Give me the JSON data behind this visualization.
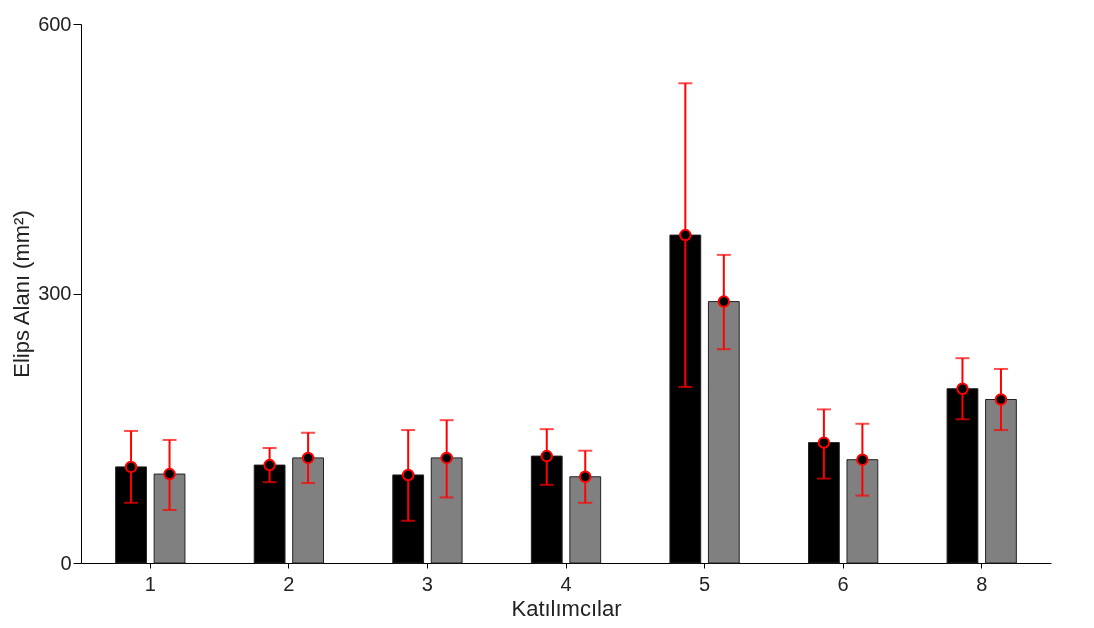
{
  "chart_data": {
    "type": "bar",
    "xlabel": "Katılımcılar",
    "ylabel": "Elips Alanı (mm²)",
    "categories": [
      "1",
      "2",
      "3",
      "4",
      "5",
      "6",
      "8"
    ],
    "series": [
      {
        "color": "#000000",
        "values": [
          107,
          109,
          98,
          119,
          365,
          134,
          194
        ],
        "errors": [
          [
            67,
            147
          ],
          [
            90,
            128
          ],
          [
            47,
            148
          ],
          [
            87,
            149
          ],
          [
            196,
            534
          ],
          [
            94,
            171
          ],
          [
            160,
            228
          ]
        ]
      },
      {
        "color": "#808080",
        "values": [
          99,
          117,
          117,
          96,
          291,
          115,
          182
        ],
        "errors": [
          [
            59,
            137
          ],
          [
            89,
            145
          ],
          [
            73,
            159
          ],
          [
            67,
            125
          ],
          [
            238,
            343
          ],
          [
            75,
            155
          ],
          [
            148,
            216
          ]
        ]
      },
      {
        "type": "scatter",
        "color": "#000000",
        "x": [
          "1",
          "2",
          "3",
          "4",
          "5",
          "6",
          "8"
        ],
        "values": [
          107,
          109,
          98,
          119,
          365,
          134,
          194
        ]
      },
      {
        "type": "scatter",
        "color": "#000000",
        "x": [
          "1",
          "2",
          "3",
          "4",
          "5",
          "6",
          "8"
        ],
        "values": [
          99,
          117,
          117,
          96,
          291,
          115,
          182
        ]
      }
    ],
    "ylim": [
      0,
      600
    ],
    "yticks": [
      0,
      300,
      600
    ],
    "grid": false,
    "legend": false,
    "marker": "circle"
  }
}
